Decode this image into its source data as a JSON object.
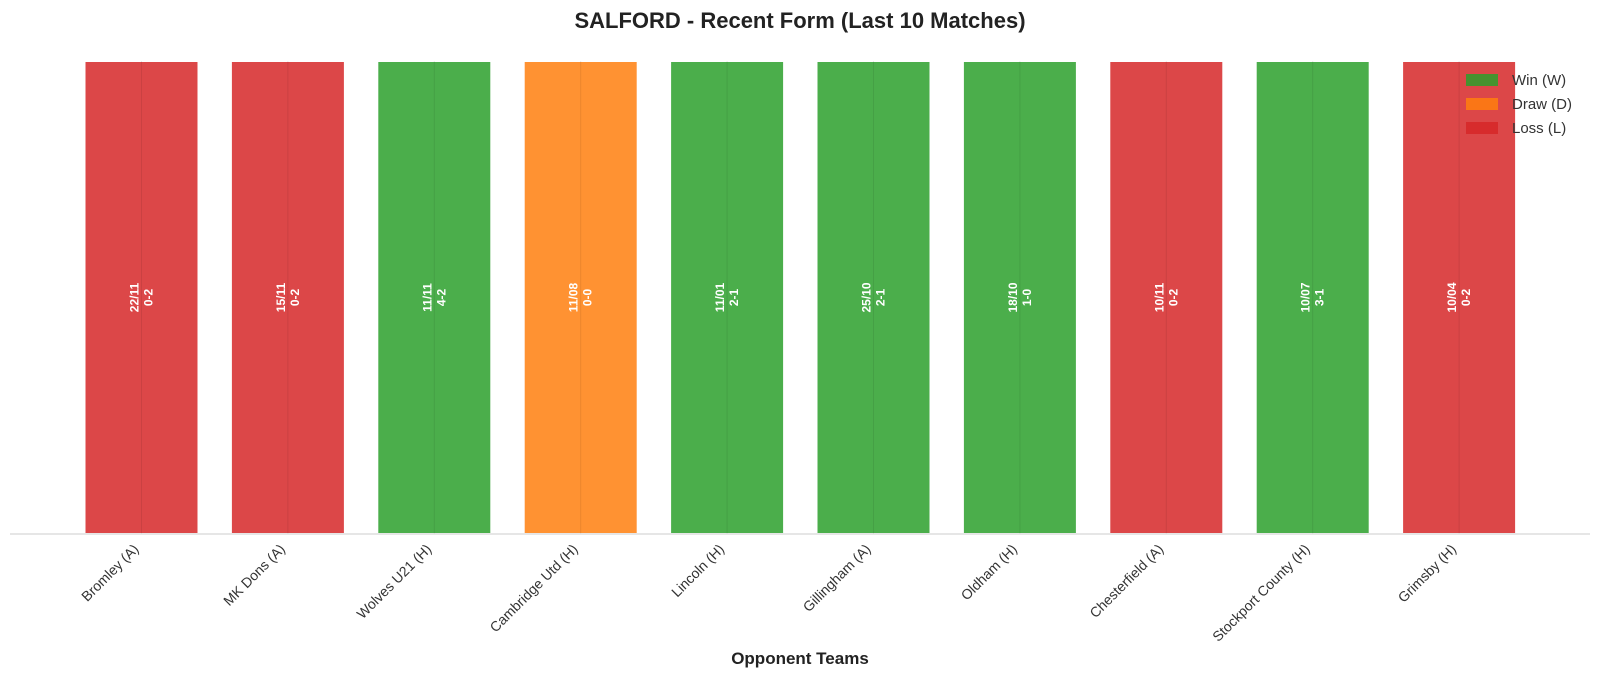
{
  "chart_data": {
    "type": "bar",
    "title": "SALFORD - Recent Form (Last 10 Matches)",
    "xlabel": "Opponent Teams",
    "ylabel": "",
    "grid": false,
    "legend_position": "top-right",
    "categories": [
      "Bromley (A)",
      "MK Dons (A)",
      "Wolves U21 (H)",
      "Cambridge Utd (H)",
      "Lincoln (H)",
      "Gillingham (A)",
      "Oldham (H)",
      "Chesterfield (A)",
      "Stockport County (H)",
      "Grimsby (H)"
    ],
    "values": [
      1,
      1,
      1,
      1,
      1,
      1,
      1,
      1,
      1,
      1
    ],
    "results": [
      "L",
      "L",
      "W",
      "D",
      "W",
      "W",
      "W",
      "L",
      "W",
      "L"
    ],
    "dates": [
      "22/11",
      "15/11",
      "11/11",
      "11/08",
      "11/01",
      "25/10",
      "18/10",
      "10/11",
      "10/07",
      "10/04"
    ],
    "scores": [
      "0-2",
      "0-2",
      "4-2",
      "0-0",
      "2-1",
      "2-1",
      "1-0",
      "0-2",
      "3-1",
      "0-2"
    ],
    "legend": [
      {
        "key": "W",
        "label": "Win (W)",
        "color": "#2ca02c"
      },
      {
        "key": "D",
        "label": "Draw (D)",
        "color": "#ff7f0e"
      },
      {
        "key": "L",
        "label": "Loss (L)",
        "color": "#d62728"
      }
    ]
  }
}
